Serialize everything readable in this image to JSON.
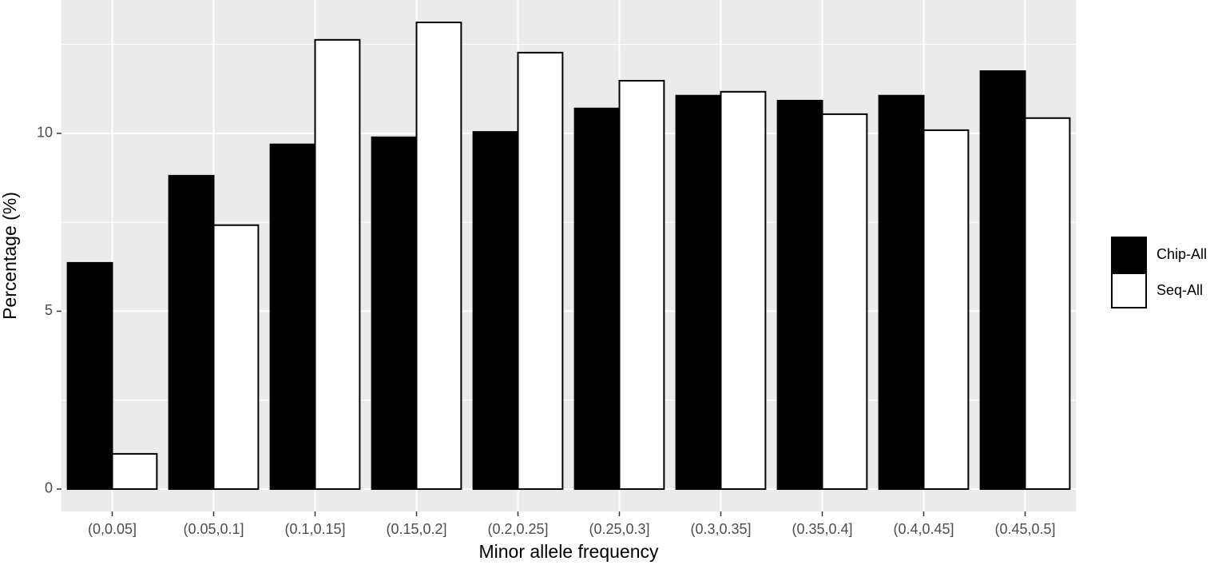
{
  "chart_data": {
    "type": "grouped_bar",
    "x_label": "Minor allele frequency",
    "y_label": "Percentage (%)",
    "categories": [
      "(0,0.05]",
      "(0.05,0.1]",
      "(0.1,0.15]",
      "(0.15,0.2]",
      "(0.2,0.25]",
      "(0.25,0.3]",
      "(0.3,0.35]",
      "(0.35,0.4]",
      "(0.4,0.45]",
      "(0.45,0.5]"
    ],
    "series": [
      {
        "name": "Chip-All",
        "color": "#000000",
        "values": [
          6.36,
          8.81,
          9.69,
          9.89,
          10.04,
          10.7,
          11.06,
          10.92,
          11.06,
          11.75
        ]
      },
      {
        "name": "Seq-All",
        "color": "#ffffff",
        "values": [
          0.99,
          7.42,
          12.63,
          13.12,
          12.27,
          11.48,
          11.17,
          10.54,
          10.09,
          10.43
        ]
      }
    ],
    "ylim": [
      -0.63,
      13.75
    ],
    "yticks": [
      0,
      5,
      10
    ],
    "grid": true,
    "legend": "right"
  }
}
